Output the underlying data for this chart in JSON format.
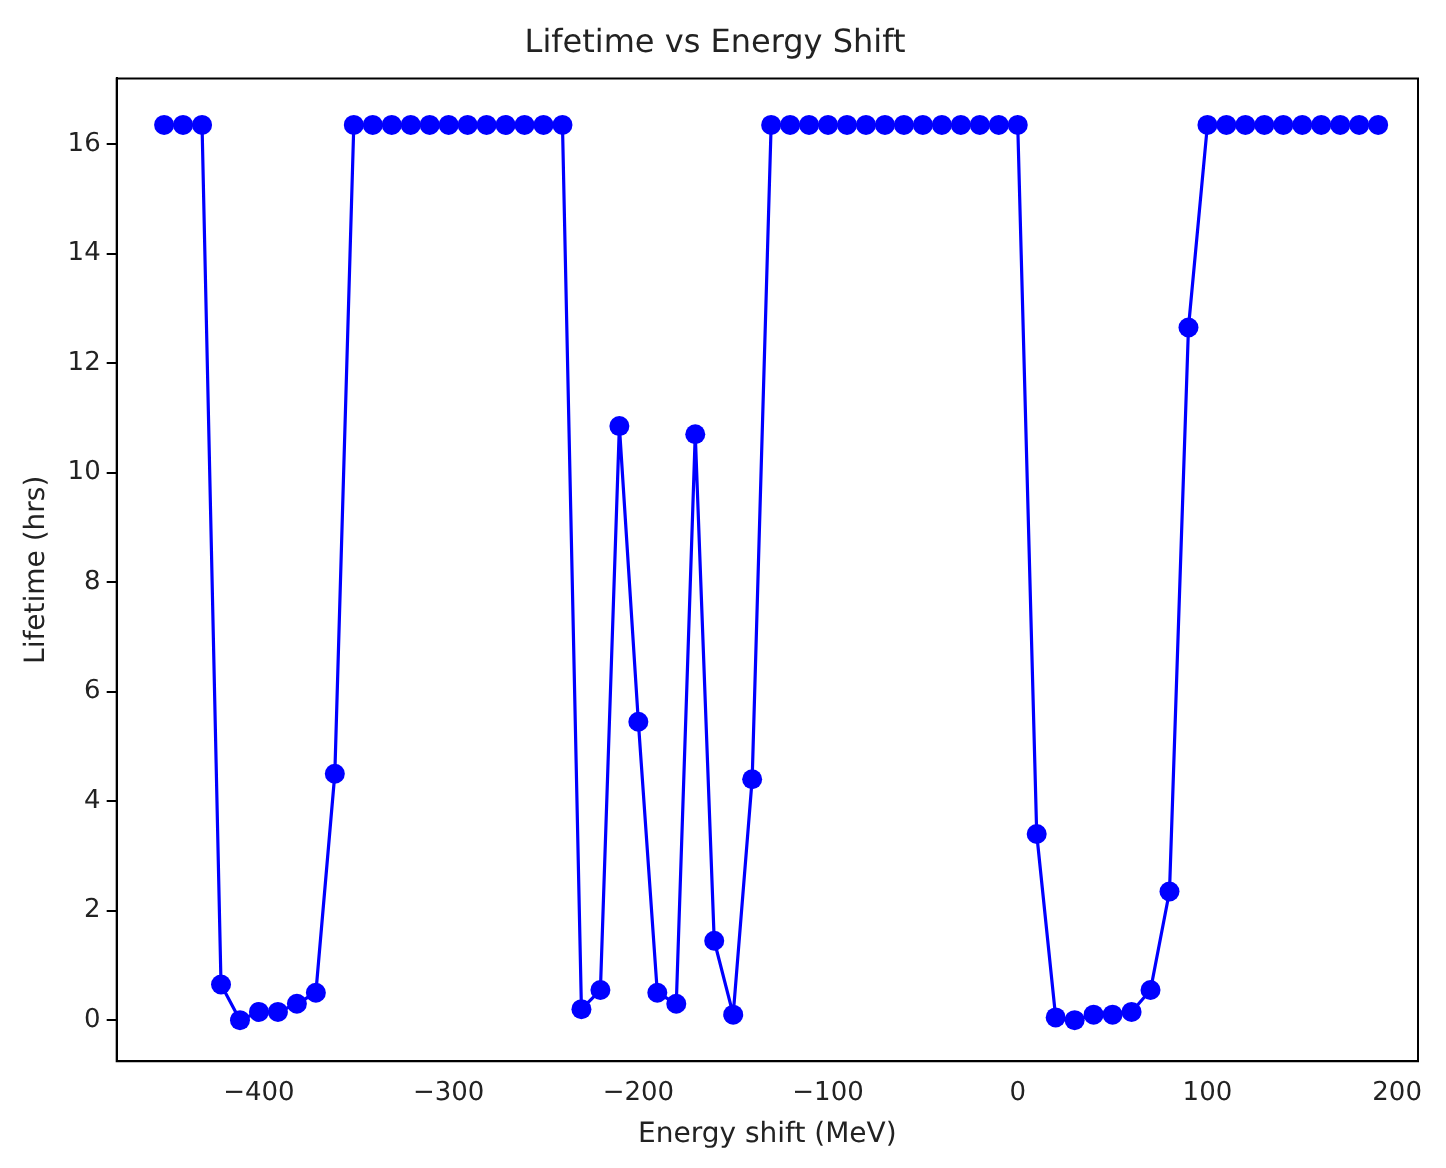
{
  "chart_data": {
    "type": "line",
    "title": "Lifetime vs Energy Shift",
    "xlabel": "Energy shift (MeV)",
    "ylabel": "Lifetime (hrs)",
    "x": [
      -450,
      -440,
      -430,
      -420,
      -410,
      -400,
      -390,
      -380,
      -370,
      -360,
      -350,
      -340,
      -330,
      -320,
      -310,
      -300,
      -290,
      -280,
      -270,
      -260,
      -250,
      -240,
      -230,
      -220,
      -210,
      -200,
      -190,
      -180,
      -170,
      -160,
      -150,
      -140,
      -130,
      -120,
      -110,
      -100,
      -90,
      -80,
      -70,
      -60,
      -50,
      -40,
      -30,
      -20,
      -10,
      0,
      10,
      20,
      30,
      40,
      50,
      60,
      70,
      80,
      90,
      100,
      110,
      120,
      130,
      140,
      150,
      160,
      170,
      180,
      190
    ],
    "series": [
      {
        "color": "#0000ff",
        "values": [
          16.35,
          16.35,
          16.35,
          0.65,
          0.0,
          0.15,
          0.15,
          0.3,
          0.5,
          4.5,
          16.35,
          16.35,
          16.35,
          16.35,
          16.35,
          16.35,
          16.35,
          16.35,
          16.35,
          16.35,
          16.35,
          16.35,
          0.2,
          0.55,
          10.85,
          5.45,
          0.5,
          0.3,
          10.7,
          1.45,
          0.1,
          4.4,
          16.35,
          16.35,
          16.35,
          16.35,
          16.35,
          16.35,
          16.35,
          16.35,
          16.35,
          16.35,
          16.35,
          16.35,
          16.35,
          16.35,
          3.4,
          0.05,
          0.0,
          0.1,
          0.1,
          0.15,
          0.55,
          2.35,
          12.65,
          16.35,
          16.35,
          16.35,
          16.35,
          16.35,
          16.35,
          16.35,
          16.35,
          16.35,
          16.35
        ]
      }
    ],
    "xlim": [
      -475,
      211
    ],
    "ylim": [
      -0.75,
      17.2
    ],
    "xticks": [
      -400,
      -300,
      -200,
      -100,
      0,
      100,
      200
    ],
    "yticks": [
      0,
      2,
      4,
      6,
      8,
      10,
      12,
      14,
      16
    ],
    "marker": "circle",
    "line_style": "solid",
    "grid": false,
    "legend": false
  }
}
